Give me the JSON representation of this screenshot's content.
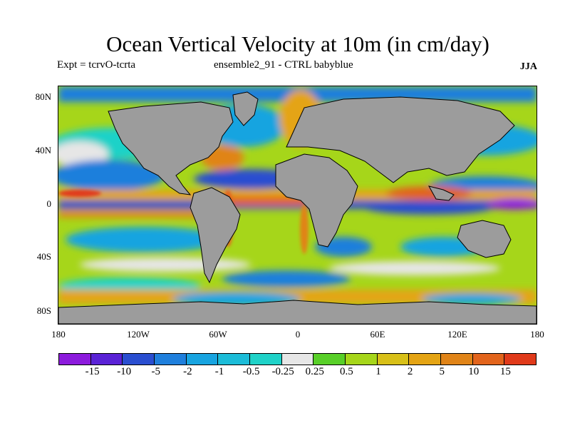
{
  "header": {
    "title": "Ocean Vertical Velocity at 10m (in cm/day)",
    "expt": "Expt = tcrvO-tcrta",
    "ensemble": "ensemble2_91 - CTRL babyblue",
    "season": "JJA"
  },
  "axes": {
    "lat_labels": [
      "80N",
      "40N",
      "0",
      "40S",
      "80S"
    ],
    "lon_labels": [
      "180",
      "120W",
      "60W",
      "0",
      "60E",
      "120E",
      "180"
    ]
  },
  "colorbar": {
    "colors": [
      "#8c1bdc",
      "#5a22d6",
      "#2a4ed0",
      "#1f7fdc",
      "#18a4e0",
      "#1cbcd8",
      "#1fd2c8",
      "#e6e6e6",
      "#58cf28",
      "#a6d61a",
      "#d8c018",
      "#e4a414",
      "#e08418",
      "#e2641c",
      "#e03a1a"
    ],
    "labels": [
      "-15",
      "-10",
      "-5",
      "-2",
      "-1",
      "-0.5",
      "-0.25",
      "0.25",
      "0.5",
      "1",
      "2",
      "5",
      "10",
      "15"
    ]
  },
  "land_color": "#9c9c9c"
}
